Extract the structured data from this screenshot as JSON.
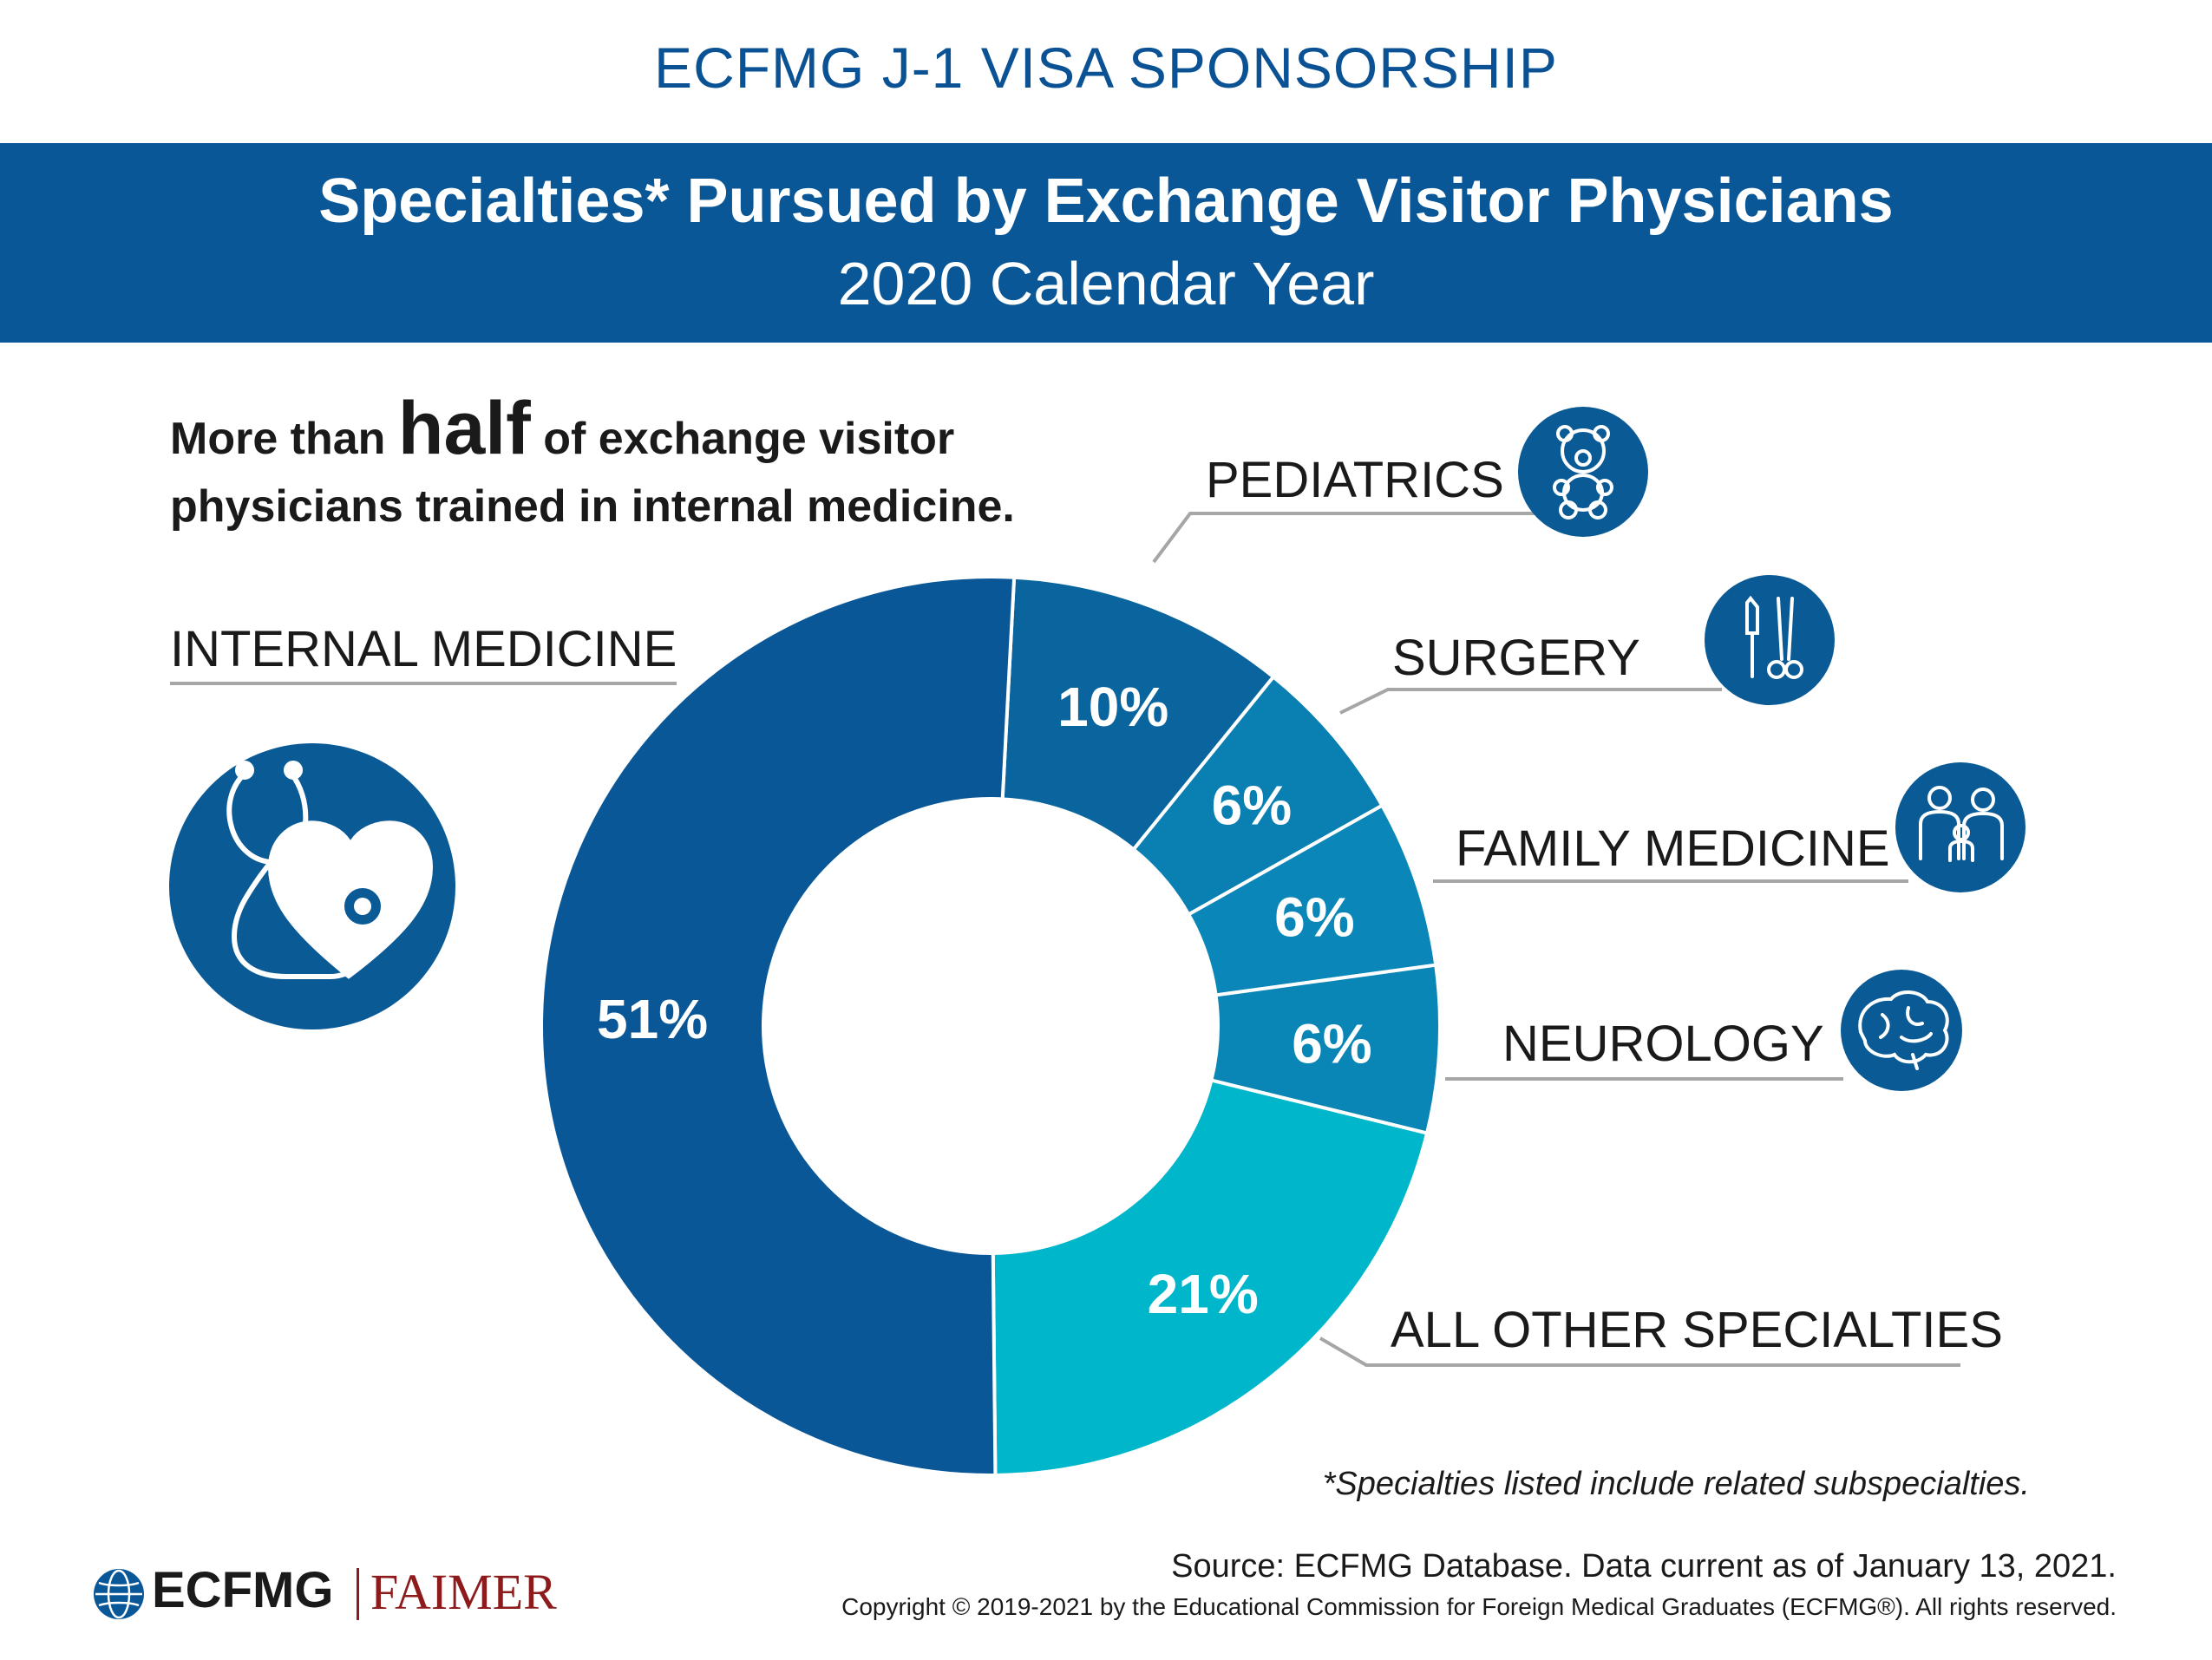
{
  "header": {
    "top_title": "ECFMG J-1 VISA SPONSORSHIP",
    "banner_title": "Specialties* Pursued by Exchange Visitor Physicians",
    "banner_subtitle": "2020 Calendar Year"
  },
  "headline": {
    "part1": "More than ",
    "emphasis": "half",
    "part2": " of exchange visitor physicians trained in internal medicine."
  },
  "colors": {
    "internal_medicine": "#0a5798",
    "pediatrics": "#0a659f",
    "surgery": "#0a7fb2",
    "family_medicine": "#0a87b8",
    "neurology": "#0a86b6",
    "other": "#00b6cb",
    "icon": "#0a5a96"
  },
  "icons": {
    "internal_medicine": "stethoscope-heart-icon",
    "pediatrics": "teddy-bear-icon",
    "surgery": "scalpel-forceps-icon",
    "family_medicine": "family-icon",
    "neurology": "brain-icon"
  },
  "chart_data": {
    "type": "pie",
    "title": "Specialties* Pursued by Exchange Visitor Physicians",
    "subtitle": "2020 Calendar Year",
    "style": "donut",
    "categories": [
      "PEDIATRICS",
      "SURGERY",
      "FAMILY MEDICINE",
      "NEUROLOGY",
      "ALL OTHER SPECIALTIES",
      "INTERNAL MEDICINE"
    ],
    "values": [
      10,
      6,
      6,
      6,
      21,
      51
    ],
    "data_labels": [
      "10%",
      "6%",
      "6%",
      "6%",
      "21%",
      "51%"
    ],
    "unit": "%"
  },
  "footer": {
    "footnote": "*Specialties listed include related subspecialties.",
    "source": "Source: ECFMG Database. Data current as of January 13, 2021.",
    "copyright": "Copyright © 2019-2021 by the Educational Commission for Foreign Medical Graduates (ECFMG®). All rights reserved.",
    "logo_left": "ECFMG",
    "logo_right": "FAIMER"
  }
}
